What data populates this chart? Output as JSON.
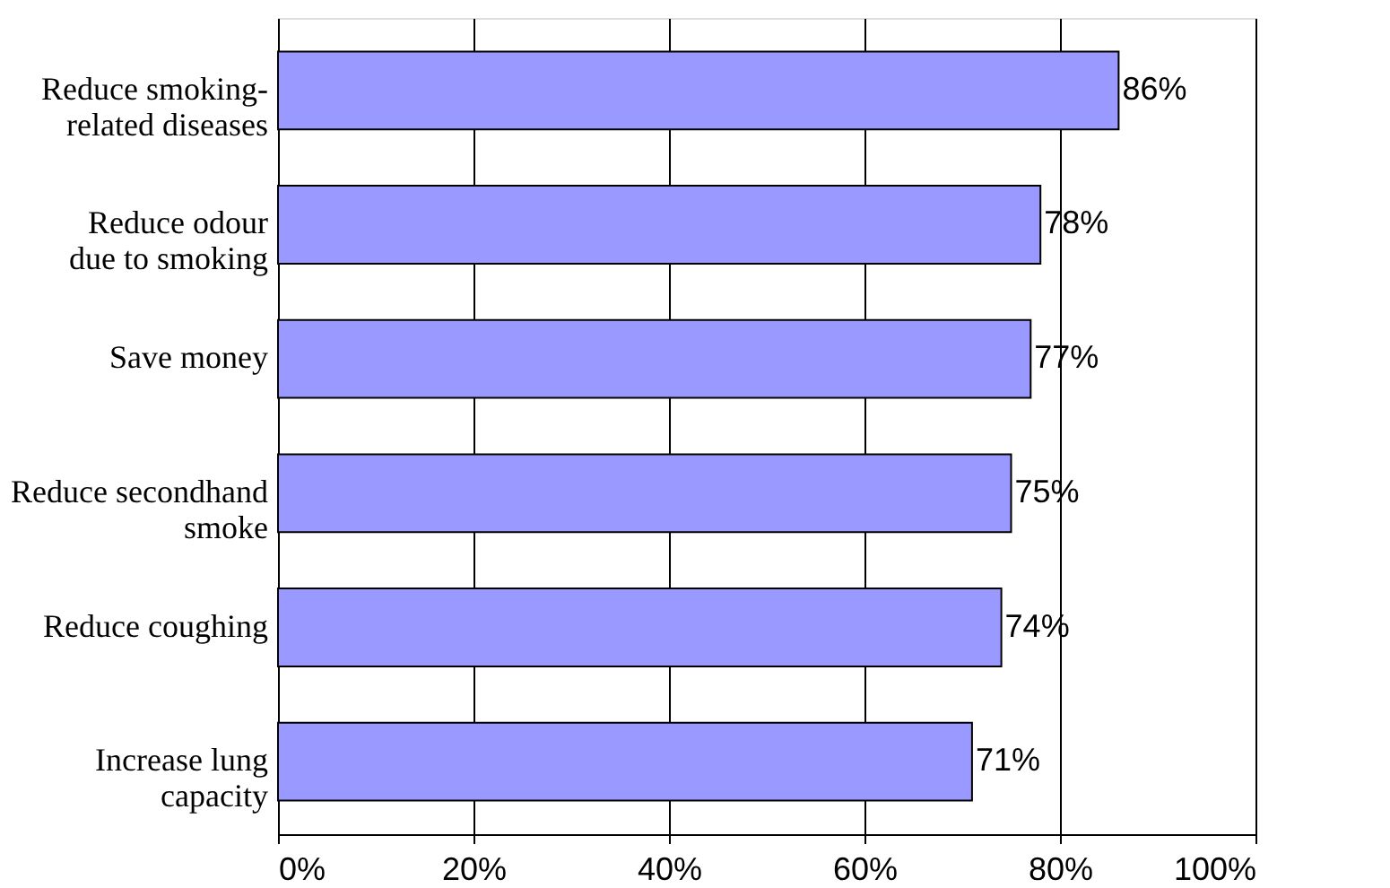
{
  "chart_data": {
    "type": "bar",
    "orientation": "horizontal",
    "categories": [
      "Reduce smoking-\nrelated diseases",
      "Reduce odour\ndue to smoking",
      "Save money",
      "Reduce secondhand\nsmoke",
      "Reduce coughing",
      "Increase lung\ncapacity"
    ],
    "values": [
      86,
      78,
      77,
      75,
      74,
      71
    ],
    "value_labels": [
      "86%",
      "78%",
      "77%",
      "75%",
      "74%",
      "71%"
    ],
    "color": "#9999ff",
    "xlim": [
      0,
      100
    ],
    "xticks": [
      {
        "value": 0,
        "label": "0%"
      },
      {
        "value": 20,
        "label": "20%"
      },
      {
        "value": 40,
        "label": "40%"
      },
      {
        "value": 60,
        "label": "60%"
      },
      {
        "value": 80,
        "label": "80%"
      },
      {
        "value": 100,
        "label": "100%"
      }
    ],
    "grid": "x"
  }
}
